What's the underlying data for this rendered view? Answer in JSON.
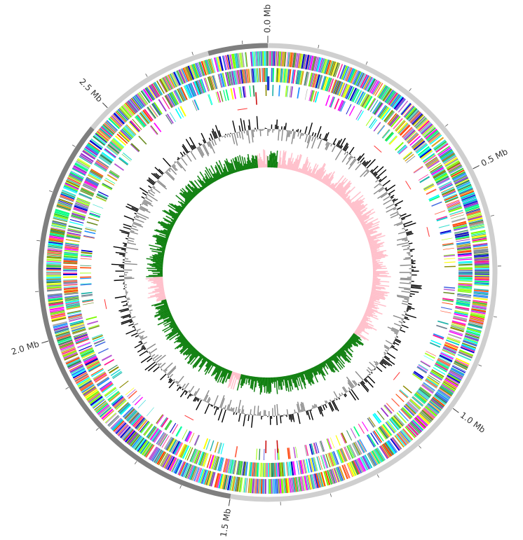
{
  "genome_map": {
    "size_mb": 2.85,
    "scale_labels": [
      {
        "pos": 0.0,
        "label": "0.0 Mb"
      },
      {
        "pos": 0.5,
        "label": "0.5 Mb"
      },
      {
        "pos": 1.0,
        "label": "1.0 Mb"
      },
      {
        "pos": 1.5,
        "label": "1.5 Mb"
      },
      {
        "pos": 2.0,
        "label": "2.0 Mb"
      },
      {
        "pos": 2.5,
        "label": "2.5 Mb"
      }
    ],
    "minor_tick_step_mb": 0.1,
    "backbone_dark_ranges_mb": [
      [
        -0.12,
        0.0
      ],
      [
        1.5,
        2.45
      ]
    ],
    "rna_marks_mb": [
      0.0,
      0.002
    ],
    "rrna_marks_mb": [
      2.82,
      1.43,
      1.4
    ],
    "trna_marks_mb": [
      0.33,
      0.46,
      0.6,
      2.05,
      1.65,
      2.78,
      1.02
    ],
    "colors": {
      "backbone_light": "#cfcfcf",
      "backbone_dark": "#7f7f7f",
      "rna_blue": "#2233cc",
      "rrna_red": "#cc1111",
      "trna_red": "#ff3333",
      "gc_content_pos": "#000000",
      "gc_content_neg": "#888888",
      "gc_skew_pos": "#ffc0cb",
      "gc_skew_neg": "#108010"
    },
    "cog_palette": [
      "#00ffff",
      "#00ced1",
      "#1e90ff",
      "#ff00ff",
      "#ff1493",
      "#adff2f",
      "#00ff7f",
      "#ffff00",
      "#8b8b00",
      "#6b8e23",
      "#708090",
      "#4169e1",
      "#ff4500",
      "#9932cc",
      "#2e8b57",
      "#a9a9a9",
      "#daa520",
      "#20b2aa",
      "#7cfc00",
      "#ba55d3",
      "#0000cd",
      "#32cd32",
      "#ff6347",
      "#40e0d0"
    ]
  }
}
